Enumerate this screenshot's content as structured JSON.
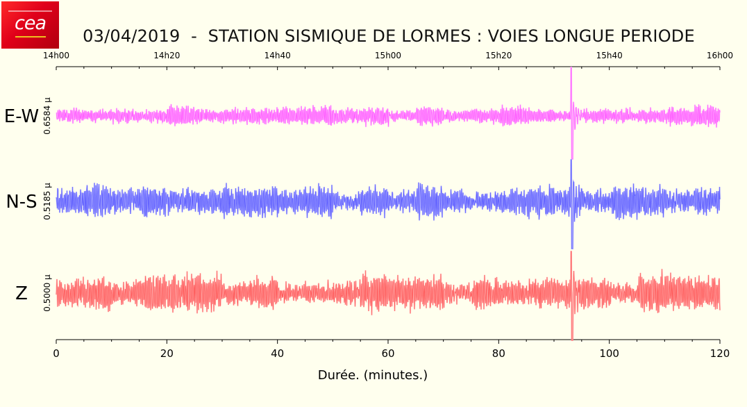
{
  "header": {
    "title": "03/04/2019  -  STATION SISMIQUE DE LORMES : VOIES LONGUE PERIODE",
    "logo_text": "cea"
  },
  "chart_data": {
    "type": "line",
    "title": "03/04/2019  -  STATION SISMIQUE DE LORMES : VOIES LONGUE PERIODE",
    "xlabel": "Durée.  (minutes.)",
    "xlim": [
      0,
      120
    ],
    "x_ticks": [
      "0",
      "20",
      "40",
      "60",
      "80",
      "100",
      "120"
    ],
    "top_axis_ticks": [
      "14h00",
      "14h20",
      "14h40",
      "15h00",
      "15h20",
      "15h40",
      "16h00"
    ],
    "event_minute": 93.2,
    "grid": false,
    "series": [
      {
        "name": "E-W",
        "scale": "0.6584 µ",
        "color": "#ff55ff",
        "fill": "#ffaaff",
        "seed": 17,
        "noise": 0.16,
        "burst": 1.0
      },
      {
        "name": "N-S",
        "scale": "0.5185 µ",
        "color": "#5555ff",
        "fill": "#aaaaff",
        "seed": 29,
        "noise": 0.26,
        "burst": 1.0
      },
      {
        "name": "Z",
        "scale": "0.5000 µ",
        "color": "#ff5555",
        "fill": "#ffaaaa",
        "seed": 43,
        "noise": 0.3,
        "burst": 1.0
      }
    ]
  }
}
